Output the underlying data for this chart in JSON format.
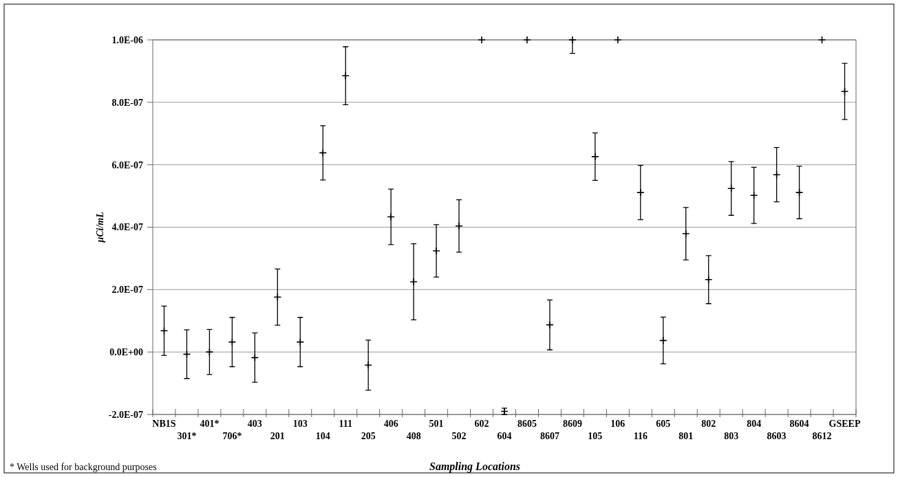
{
  "chart_data": {
    "type": "scatter",
    "xlabel": "Sampling Locations",
    "ylabel": "µCi/mL",
    "annotations": [
      "* Wells used for background purposes"
    ],
    "categories": [
      "NB1S",
      "301*",
      "401*",
      "706*",
      "403",
      "201",
      "103",
      "104",
      "111",
      "205",
      "406",
      "408",
      "501",
      "502",
      "602",
      "604",
      "8605",
      "8607",
      "8609",
      "105",
      "106",
      "116",
      "605",
      "801",
      "802",
      "803",
      "804",
      "8603",
      "8604",
      "8612",
      "GSEEP"
    ],
    "series": [
      {
        "color": "#000000",
        "values": [
          6.8e-08,
          -7e-09,
          0,
          3.2e-08,
          -1.8e-08,
          1.76e-07,
          3.2e-08,
          6.38e-07,
          8.85e-07,
          -4.2e-08,
          4.33e-07,
          2.25e-07,
          3.24e-07,
          4.04e-07,
          1e-06,
          -1.9e-07,
          1e-06,
          8.7e-08,
          1e-06,
          6.26e-07,
          1e-06,
          5.11e-07,
          3.7e-08,
          3.79e-07,
          2.32e-07,
          5.24e-07,
          5.02e-07,
          5.68e-07,
          5.11e-07,
          1e-06,
          8.35e-07
        ],
        "errors": [
          7.9e-08,
          7.8e-08,
          7.2e-08,
          7.9e-08,
          7.9e-08,
          9e-08,
          7.9e-08,
          8.7e-08,
          9.3e-08,
          8e-08,
          8.9e-08,
          1.22e-07,
          8.4e-08,
          8.4e-08,
          null,
          1e-08,
          null,
          8e-08,
          [
            9.57e-07,
            1e-06
          ],
          7.6e-08,
          null,
          8.7e-08,
          7.5e-08,
          8.4e-08,
          7.7e-08,
          8.6e-08,
          9e-08,
          8.7e-08,
          8.4e-08,
          null,
          9e-08
        ]
      }
    ],
    "ylim": [
      -2e-07,
      1e-06
    ],
    "yticks": [
      {
        "value": -2e-07,
        "label": "-2.0E-07"
      },
      {
        "value": 0,
        "label": "0.0E+00"
      },
      {
        "value": 2e-07,
        "label": "2.0E-07"
      },
      {
        "value": 4e-07,
        "label": "4.0E-07"
      },
      {
        "value": 6e-07,
        "label": "6.0E-07"
      },
      {
        "value": 8e-07,
        "label": "8.0E-07"
      },
      {
        "value": 1e-06,
        "label": "1.0E-06"
      }
    ],
    "grid": "y",
    "marker": "cross"
  }
}
